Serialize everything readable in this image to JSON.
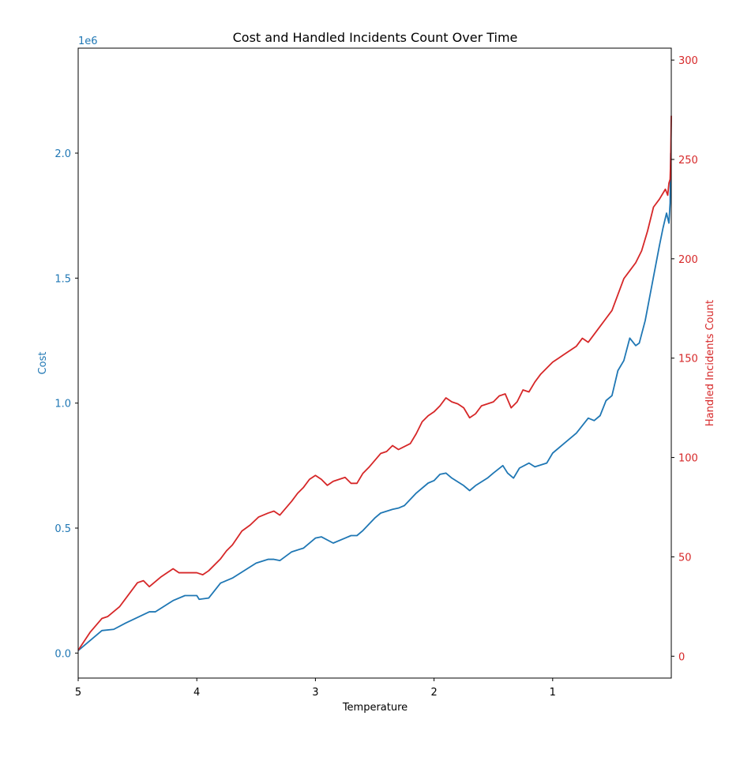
{
  "chart_data": {
    "type": "line",
    "title": "Cost and Handled Incidents Count Over Time",
    "xlabel": "Temperature",
    "x_reversed": true,
    "xlim": [
      5,
      0.0
    ],
    "x_ticks": [
      5,
      4,
      3,
      2,
      1
    ],
    "y_left": {
      "label": "Cost",
      "offset_text": "1e6",
      "scale": 1000000,
      "ylim": [
        -100000,
        2420000
      ],
      "ticks": [
        0.0,
        0.5,
        1.0,
        1.5,
        2.0
      ],
      "color": "#1f77b4"
    },
    "y_right": {
      "label": "Handled Incidents Count",
      "ylim": [
        -11,
        306
      ],
      "ticks": [
        0,
        50,
        100,
        150,
        200,
        250,
        300
      ],
      "color": "#d62728"
    },
    "series": [
      {
        "axis": "left",
        "color": "#1f77b4",
        "points": [
          [
            5.0,
            10000
          ],
          [
            4.8,
            90000
          ],
          [
            4.7,
            95000
          ],
          [
            4.6,
            120000
          ],
          [
            4.4,
            165000
          ],
          [
            4.35,
            165000
          ],
          [
            4.2,
            210000
          ],
          [
            4.1,
            230000
          ],
          [
            4.0,
            230000
          ],
          [
            3.98,
            215000
          ],
          [
            3.9,
            220000
          ],
          [
            3.8,
            280000
          ],
          [
            3.7,
            300000
          ],
          [
            3.6,
            330000
          ],
          [
            3.5,
            360000
          ],
          [
            3.4,
            375000
          ],
          [
            3.35,
            375000
          ],
          [
            3.3,
            370000
          ],
          [
            3.2,
            405000
          ],
          [
            3.1,
            420000
          ],
          [
            3.0,
            460000
          ],
          [
            2.95,
            465000
          ],
          [
            2.85,
            440000
          ],
          [
            2.75,
            460000
          ],
          [
            2.7,
            470000
          ],
          [
            2.65,
            470000
          ],
          [
            2.6,
            490000
          ],
          [
            2.5,
            540000
          ],
          [
            2.45,
            560000
          ],
          [
            2.35,
            575000
          ],
          [
            2.3,
            580000
          ],
          [
            2.25,
            590000
          ],
          [
            2.15,
            640000
          ],
          [
            2.05,
            680000
          ],
          [
            2.0,
            690000
          ],
          [
            1.95,
            715000
          ],
          [
            1.9,
            720000
          ],
          [
            1.85,
            700000
          ],
          [
            1.75,
            670000
          ],
          [
            1.7,
            650000
          ],
          [
            1.65,
            670000
          ],
          [
            1.55,
            700000
          ],
          [
            1.5,
            720000
          ],
          [
            1.42,
            750000
          ],
          [
            1.38,
            720000
          ],
          [
            1.33,
            700000
          ],
          [
            1.28,
            740000
          ],
          [
            1.2,
            760000
          ],
          [
            1.15,
            745000
          ],
          [
            1.05,
            760000
          ],
          [
            1.0,
            800000
          ],
          [
            0.9,
            840000
          ],
          [
            0.8,
            880000
          ],
          [
            0.7,
            940000
          ],
          [
            0.65,
            930000
          ],
          [
            0.6,
            950000
          ],
          [
            0.55,
            1010000
          ],
          [
            0.5,
            1030000
          ],
          [
            0.45,
            1130000
          ],
          [
            0.4,
            1170000
          ],
          [
            0.35,
            1260000
          ],
          [
            0.3,
            1230000
          ],
          [
            0.27,
            1240000
          ],
          [
            0.22,
            1330000
          ],
          [
            0.18,
            1430000
          ],
          [
            0.14,
            1530000
          ],
          [
            0.1,
            1630000
          ],
          [
            0.07,
            1700000
          ],
          [
            0.04,
            1760000
          ],
          [
            0.02,
            1720000
          ],
          [
            0.01,
            1800000
          ],
          [
            0.005,
            2000000
          ],
          [
            0.0,
            2000000
          ]
        ]
      },
      {
        "axis": "right",
        "color": "#d62728",
        "points": [
          [
            5.0,
            3
          ],
          [
            4.9,
            12
          ],
          [
            4.8,
            19
          ],
          [
            4.75,
            20
          ],
          [
            4.65,
            25
          ],
          [
            4.5,
            37
          ],
          [
            4.45,
            38
          ],
          [
            4.4,
            35
          ],
          [
            4.3,
            40
          ],
          [
            4.2,
            44
          ],
          [
            4.15,
            42
          ],
          [
            4.1,
            42
          ],
          [
            4.0,
            42
          ],
          [
            3.95,
            41
          ],
          [
            3.9,
            43
          ],
          [
            3.8,
            49
          ],
          [
            3.75,
            53
          ],
          [
            3.7,
            56
          ],
          [
            3.62,
            63
          ],
          [
            3.55,
            66
          ],
          [
            3.48,
            70
          ],
          [
            3.4,
            72
          ],
          [
            3.35,
            73
          ],
          [
            3.3,
            71
          ],
          [
            3.2,
            78
          ],
          [
            3.15,
            82
          ],
          [
            3.1,
            85
          ],
          [
            3.05,
            89
          ],
          [
            3.0,
            91
          ],
          [
            2.95,
            89
          ],
          [
            2.9,
            86
          ],
          [
            2.85,
            88
          ],
          [
            2.8,
            89
          ],
          [
            2.75,
            90
          ],
          [
            2.7,
            87
          ],
          [
            2.65,
            87
          ],
          [
            2.6,
            92
          ],
          [
            2.55,
            95
          ],
          [
            2.45,
            102
          ],
          [
            2.4,
            103
          ],
          [
            2.35,
            106
          ],
          [
            2.3,
            104
          ],
          [
            2.2,
            107
          ],
          [
            2.15,
            112
          ],
          [
            2.1,
            118
          ],
          [
            2.05,
            121
          ],
          [
            2.0,
            123
          ],
          [
            1.95,
            126
          ],
          [
            1.9,
            130
          ],
          [
            1.85,
            128
          ],
          [
            1.8,
            127
          ],
          [
            1.75,
            125
          ],
          [
            1.7,
            120
          ],
          [
            1.65,
            122
          ],
          [
            1.6,
            126
          ],
          [
            1.55,
            127
          ],
          [
            1.5,
            128
          ],
          [
            1.45,
            131
          ],
          [
            1.4,
            132
          ],
          [
            1.35,
            125
          ],
          [
            1.3,
            128
          ],
          [
            1.25,
            134
          ],
          [
            1.2,
            133
          ],
          [
            1.15,
            138
          ],
          [
            1.1,
            142
          ],
          [
            1.0,
            148
          ],
          [
            0.95,
            150
          ],
          [
            0.9,
            152
          ],
          [
            0.85,
            154
          ],
          [
            0.8,
            156
          ],
          [
            0.75,
            160
          ],
          [
            0.7,
            158
          ],
          [
            0.6,
            166
          ],
          [
            0.55,
            170
          ],
          [
            0.5,
            174
          ],
          [
            0.45,
            182
          ],
          [
            0.4,
            190
          ],
          [
            0.35,
            194
          ],
          [
            0.3,
            198
          ],
          [
            0.25,
            204
          ],
          [
            0.2,
            214
          ],
          [
            0.15,
            226
          ],
          [
            0.1,
            230
          ],
          [
            0.05,
            235
          ],
          [
            0.03,
            232
          ],
          [
            0.02,
            238
          ],
          [
            0.01,
            240
          ],
          [
            0.005,
            250
          ],
          [
            0.0,
            272
          ]
        ]
      }
    ]
  }
}
